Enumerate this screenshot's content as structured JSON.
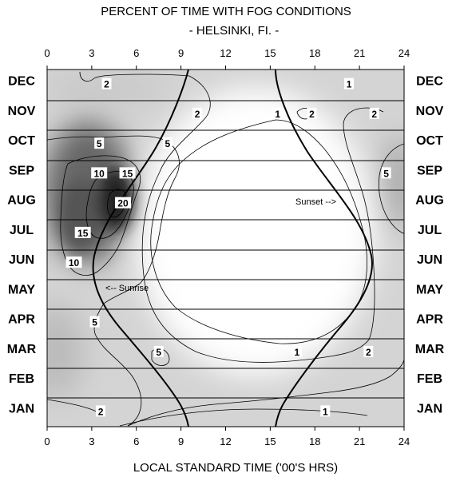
{
  "chart_data": {
    "type": "heatmap",
    "title": "PERCENT OF TIME WITH FOG CONDITIONS",
    "subtitle": "- HELSINKI, FI. -",
    "xlabel": "LOCAL STANDARD TIME ('00'S HRS)",
    "xlim": [
      0,
      24
    ],
    "xticks": [
      "0",
      "3",
      "6",
      "9",
      "12",
      "15",
      "18",
      "21",
      "24"
    ],
    "months": [
      "DEC",
      "NOV",
      "OCT",
      "SEP",
      "AUG",
      "JUL",
      "JUN",
      "MAY",
      "APR",
      "MAR",
      "FEB",
      "JAN"
    ],
    "contour_levels": [
      1,
      2,
      5,
      10,
      15,
      20
    ],
    "contour_labels": [
      {
        "text": "2",
        "hour": 4.0,
        "month": "DEC"
      },
      {
        "text": "1",
        "hour": 20.3,
        "month": "DEC"
      },
      {
        "text": "2",
        "hour": 10.1,
        "month": "NOV"
      },
      {
        "text": "2",
        "hour": 17.8,
        "month": "NOV"
      },
      {
        "text": "2",
        "hour": 22.0,
        "month": "NOV"
      },
      {
        "text": "1",
        "hour": 15.5,
        "month": "NOV"
      },
      {
        "text": "5",
        "hour": 3.5,
        "month": "OCT"
      },
      {
        "text": "5",
        "hour": 8.1,
        "month": "OCT"
      },
      {
        "text": "10",
        "hour": 3.5,
        "month": "SEP"
      },
      {
        "text": "15",
        "hour": 5.4,
        "month": "SEP"
      },
      {
        "text": "5",
        "hour": 22.8,
        "month": "SEP"
      },
      {
        "text": "20",
        "hour": 5.1,
        "month": "AUG"
      },
      {
        "text": "15",
        "hour": 2.4,
        "month": "JUL"
      },
      {
        "text": "10",
        "hour": 1.8,
        "month": "JUN"
      },
      {
        "text": "5",
        "hour": 3.2,
        "month": "APR"
      },
      {
        "text": "1",
        "hour": 16.8,
        "month": "MAR"
      },
      {
        "text": "5",
        "hour": 7.5,
        "month": "MAR"
      },
      {
        "text": "2",
        "hour": 21.6,
        "month": "MAR"
      },
      {
        "text": "2",
        "hour": 3.6,
        "month": "JAN"
      },
      {
        "text": "1",
        "hour": 18.7,
        "month": "JAN"
      }
    ],
    "annotations": {
      "sunrise": "<-- Sunrise",
      "sunset": "Sunset -->"
    }
  }
}
